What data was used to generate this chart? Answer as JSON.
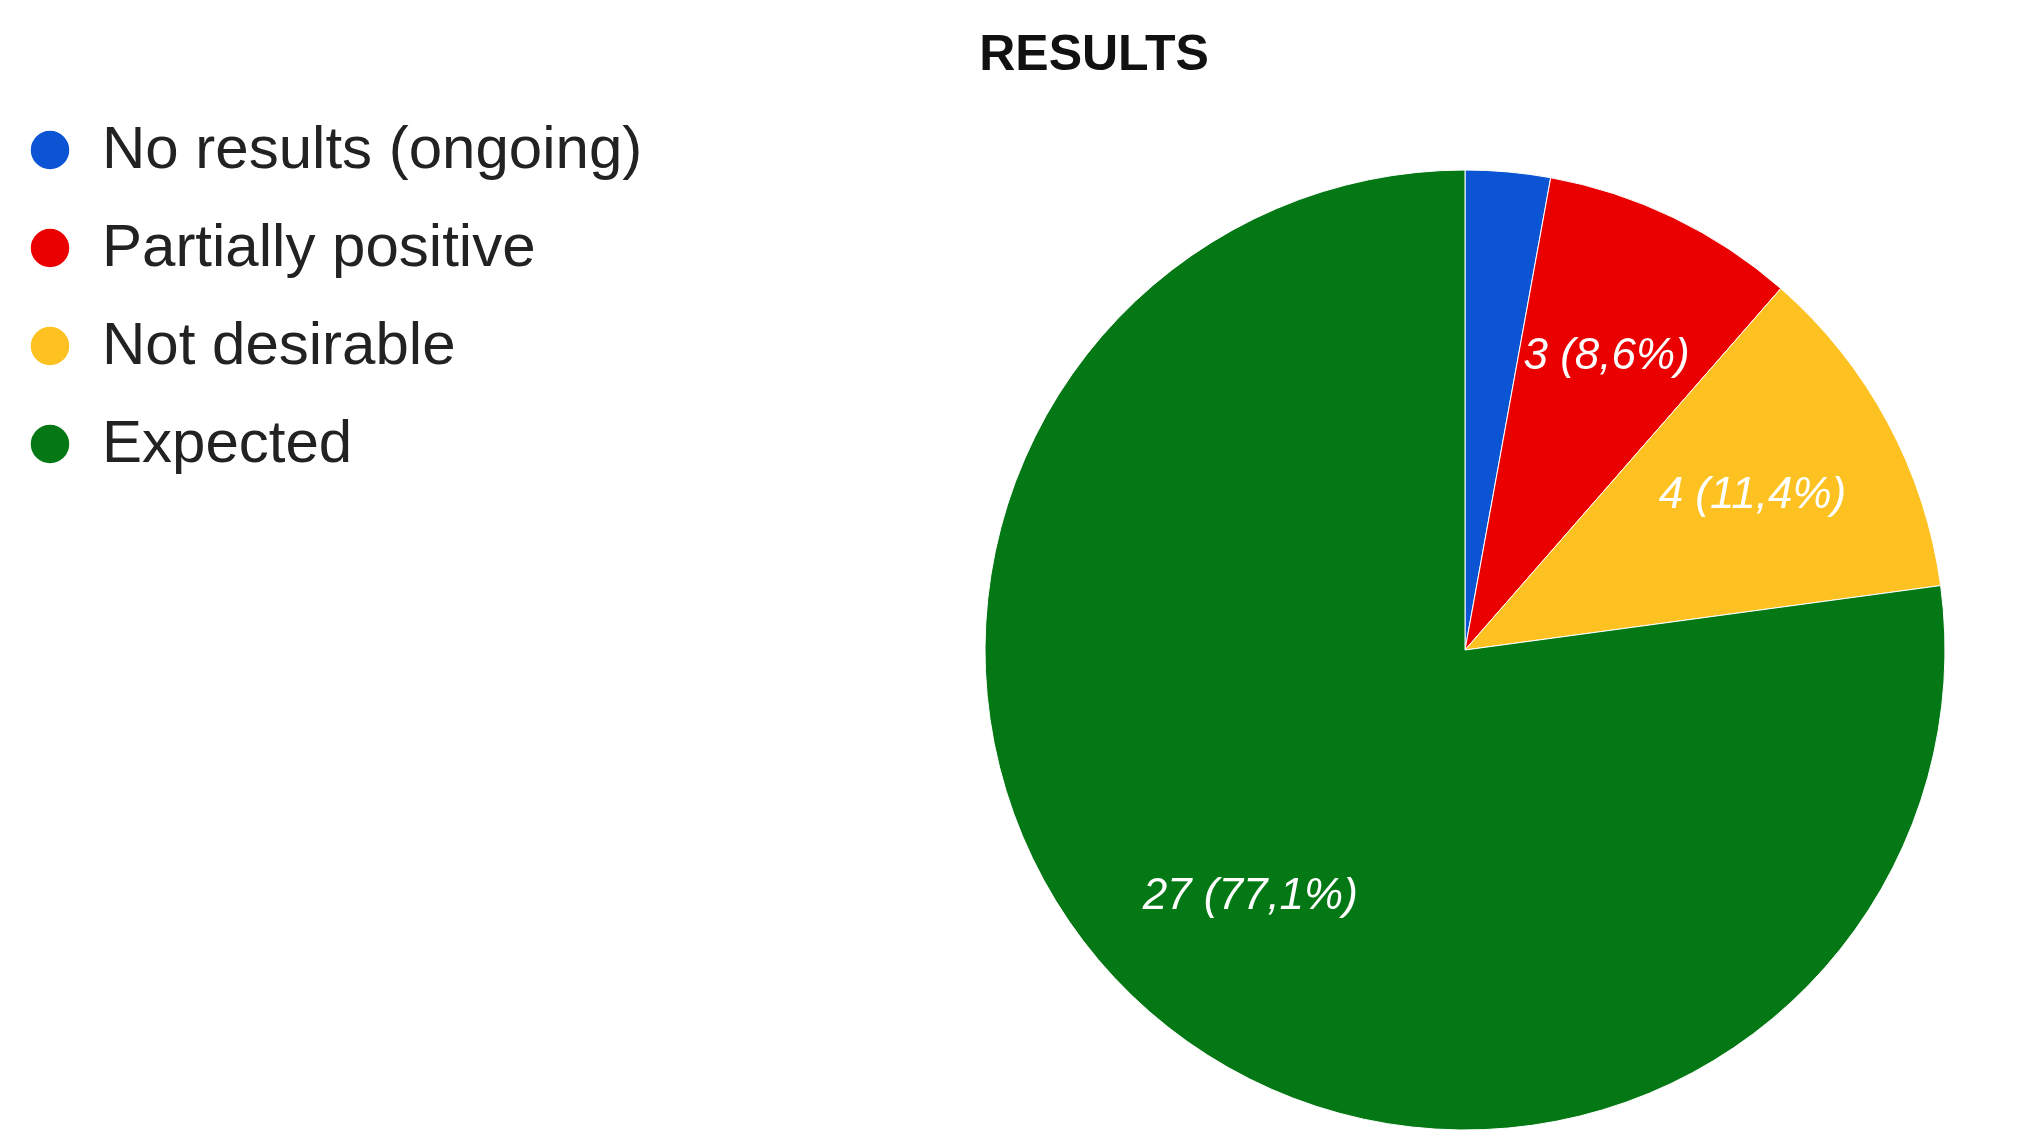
{
  "chart_data": {
    "type": "pie",
    "title": "RESULTS",
    "categories": [
      "No results (ongoing)",
      "Partially positive",
      "Not desirable",
      "Expected"
    ],
    "values": [
      1,
      3,
      4,
      27
    ],
    "colors": [
      "#0b55d4",
      "#ea0000",
      "#fdc121",
      "#047814"
    ],
    "value_labels": [
      null,
      "3 (8,6%)",
      "4 (11,4%)",
      "27 (77,1%)"
    ],
    "legend": "top left"
  }
}
